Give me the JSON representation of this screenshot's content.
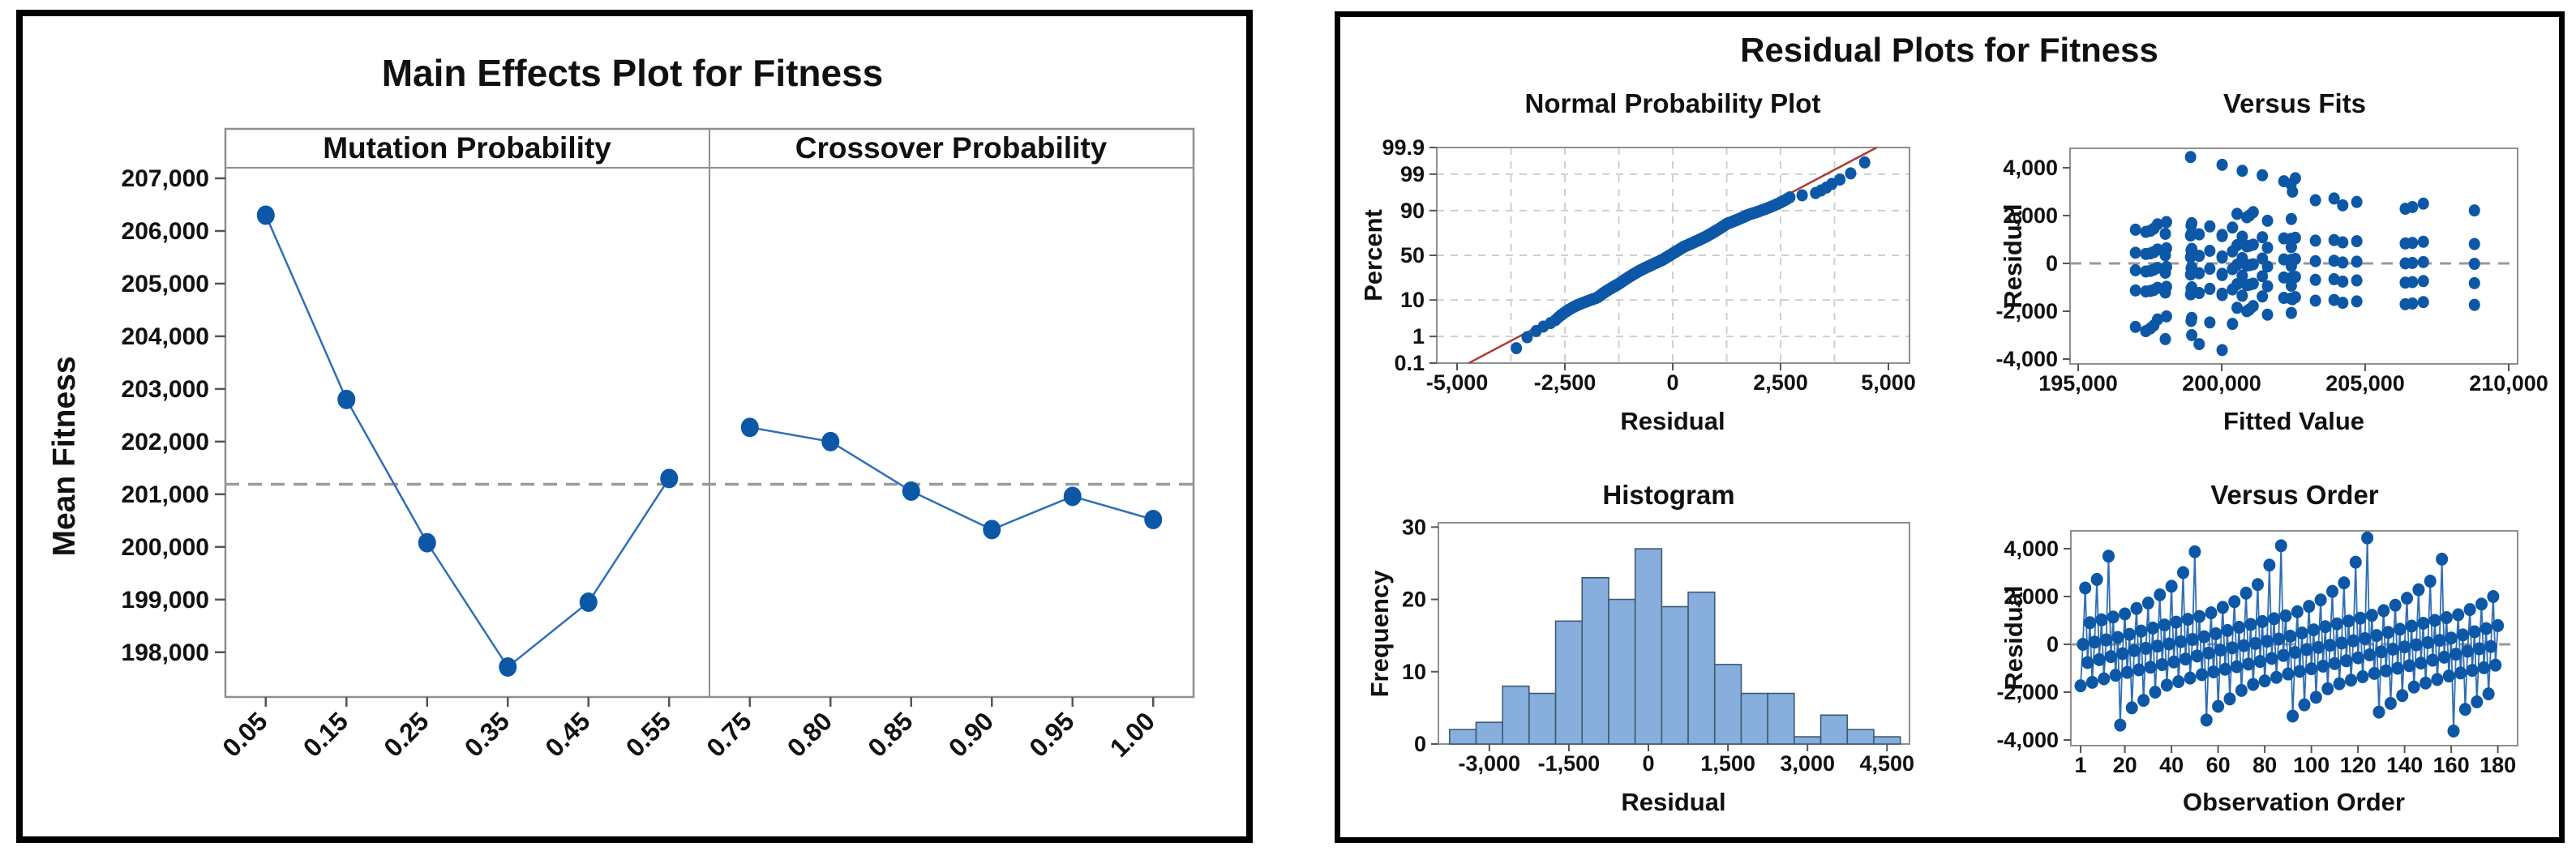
{
  "titles": {
    "residual_plots": "Residual Plots for Fitness"
  },
  "colors": {
    "point": "#0d57a7",
    "series_line": "#2f6eb6",
    "bar_fill": "#87aedc",
    "bar_stroke": "#3d5a73",
    "reference_dash": "#9a9a9a",
    "grid": "#cfcfcf",
    "frame": "#8f8f8f",
    "fit_line": "#ae3c32",
    "tick": "#555555",
    "text": "#111111"
  },
  "chart_data": [
    {
      "id": "main_effects",
      "type": "line",
      "title": "Main Effects Plot for Fitness",
      "ylabel": "Mean Fitness",
      "ylim": [
        197150,
        207200
      ],
      "yticks": [
        198000,
        199000,
        200000,
        201000,
        202000,
        203000,
        204000,
        205000,
        206000,
        207000
      ],
      "reference_line": 201190,
      "grid": false,
      "panels": [
        {
          "label": "Mutation Probability",
          "categories": [
            "0.05",
            "0.15",
            "0.25",
            "0.35",
            "0.45",
            "0.55"
          ],
          "values": [
            206300,
            202800,
            200080,
            197720,
            198950,
            201300
          ]
        },
        {
          "label": "Crossover Probability",
          "categories": [
            "0.75",
            "0.80",
            "0.85",
            "0.90",
            "0.95",
            "1.00"
          ],
          "values": [
            202270,
            202000,
            201060,
            200330,
            200960,
            200520
          ]
        }
      ]
    },
    {
      "id": "normal_probability",
      "type": "scatter",
      "title": "Normal Probability Plot",
      "xlabel": "Residual",
      "ylabel": "Percent",
      "xlim": [
        -5500,
        5500
      ],
      "xticks": [
        -5000,
        -2500,
        0,
        2500,
        5000
      ],
      "ytick_percents": [
        0.1,
        1,
        10,
        50,
        90,
        99,
        99.9
      ],
      "grid_percents": [
        1,
        10,
        50,
        90,
        99
      ],
      "grid_x_step": 1250,
      "grid": true,
      "fit_line": {
        "mean": 0,
        "sd": 1530
      },
      "points_from": "residuals_sorted"
    },
    {
      "id": "versus_fits",
      "type": "scatter",
      "title": "Versus Fits",
      "xlabel": "Fitted Value",
      "ylabel": "Residual",
      "xlim": [
        194700,
        210300
      ],
      "xticks": [
        195000,
        200000,
        205000,
        210000
      ],
      "yticks": [
        -4000,
        -2000,
        0,
        2000,
        4000
      ],
      "zero_line": true,
      "grid": false,
      "fitted_values_by_cell": [
        208807,
        206397,
        206647,
        204217,
        207027,
        204707,
        203267,
        203917,
        202467,
        202417,
        202167,
        202567,
        201417,
        200717,
        200017,
        198917,
        200017,
        199217,
        198037,
        198957,
        197357,
        197517,
        196997,
        197637,
        200377,
        199587,
        198937,
        197767,
        198957,
        198077,
        201597,
        202427,
        200877,
        200967,
        200537,
        201097
      ],
      "replicates": 5
    },
    {
      "id": "histogram",
      "type": "bar",
      "title": "Histogram",
      "xlabel": "Residual",
      "ylabel": "Frequency",
      "bin_width": 500,
      "bin_centers": [
        -3500,
        -3000,
        -2500,
        -2000,
        -1500,
        -1000,
        -500,
        0,
        500,
        1000,
        1500,
        2000,
        2500,
        3000,
        3500,
        4000,
        4500
      ],
      "counts": [
        2,
        3,
        8,
        7,
        17,
        23,
        20,
        27,
        19,
        21,
        11,
        7,
        7,
        1,
        4,
        2,
        1
      ],
      "xticks": [
        -3000,
        -1500,
        0,
        1500,
        3000,
        4500
      ],
      "yticks": [
        0,
        10,
        20,
        30
      ],
      "ylim": [
        0,
        30.6
      ],
      "grid": false
    },
    {
      "id": "versus_order",
      "type": "line",
      "title": "Versus Order",
      "xlabel": "Observation Order",
      "ylabel": "Residual",
      "n": 180,
      "xticks": [
        1,
        20,
        40,
        60,
        80,
        100,
        120,
        140,
        160,
        180
      ],
      "yticks": [
        -4000,
        -2000,
        0,
        2000,
        4000
      ],
      "zero_line": true,
      "grid": false,
      "order_stride": 73,
      "order_offset": 20
    }
  ],
  "residuals_sorted": [
    -3625,
    -3375,
    -3167,
    -3000,
    -2833,
    -2719,
    -2656,
    -2594,
    -2531,
    -2469,
    -2406,
    -2344,
    -2281,
    -2214,
    -2143,
    -2071,
    -2000,
    -1929,
    -1857,
    -1786,
    -1735,
    -1706,
    -1676,
    -1647,
    -1618,
    -1588,
    -1559,
    -1529,
    -1500,
    -1471,
    -1441,
    -1412,
    -1382,
    -1353,
    -1324,
    -1294,
    -1265,
    -1239,
    -1217,
    -1196,
    -1174,
    -1152,
    -1130,
    -1109,
    -1087,
    -1065,
    -1043,
    -1022,
    -1000,
    -978,
    -957,
    -935,
    -913,
    -891,
    -870,
    -848,
    -826,
    -804,
    -783,
    -761,
    -738,
    -713,
    -688,
    -663,
    -638,
    -613,
    -588,
    -563,
    -538,
    -513,
    -488,
    -463,
    -438,
    -413,
    -388,
    -363,
    -338,
    -313,
    -288,
    -263,
    -241,
    -222,
    -204,
    -185,
    -167,
    -148,
    -130,
    -111,
    -93,
    -74,
    -56,
    -37,
    -19,
    0,
    19,
    37,
    56,
    74,
    93,
    111,
    130,
    148,
    167,
    185,
    204,
    222,
    241,
    263,
    289,
    316,
    342,
    368,
    395,
    421,
    447,
    474,
    500,
    526,
    553,
    579,
    605,
    632,
    658,
    684,
    711,
    737,
    762,
    786,
    810,
    833,
    857,
    881,
    905,
    929,
    952,
    976,
    1000,
    1024,
    1048,
    1071,
    1095,
    1119,
    1143,
    1167,
    1190,
    1214,
    1238,
    1273,
    1318,
    1364,
    1409,
    1455,
    1500,
    1545,
    1591,
    1636,
    1682,
    1727,
    1786,
    1857,
    1929,
    2000,
    2071,
    2143,
    2214,
    2286,
    2357,
    2429,
    2500,
    2571,
    2643,
    2714,
    3000,
    3313,
    3438,
    3563,
    3688,
    3875,
    4125,
    4450
  ]
}
